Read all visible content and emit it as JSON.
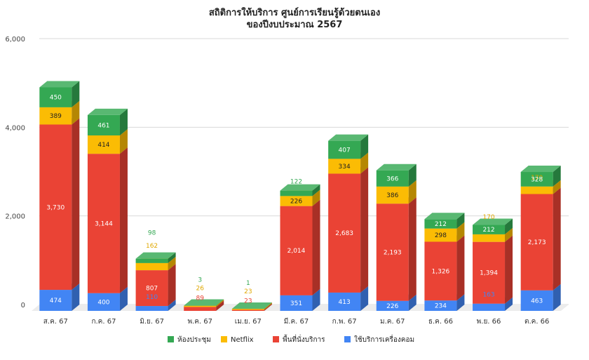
{
  "chart_data": {
    "type": "bar",
    "stacked": true,
    "style": "3d",
    "title": "สถิติการให้บริการ ศูนย์การเรียนรู้ด้วยตนเอง",
    "subtitle": "ของปีงบประมาณ 2567",
    "xlabel": "",
    "ylabel": "",
    "ylim": [
      0,
      6000
    ],
    "yticks": [
      "0",
      "2,000",
      "4,000",
      "6,000"
    ],
    "grid": true,
    "legend_position": "bottom",
    "categories": [
      "ส.ค. 67",
      "ก.ค. 67",
      "มิ.ย. 67",
      "พ.ค. 67",
      "เม.ย. 67",
      "มี.ค. 67",
      "ก.พ. 67",
      "ม.ค. 67",
      "ธ.ค. 66",
      "พ.ย. 66",
      "ต.ค. 66"
    ],
    "series": [
      {
        "name": "ใช้บริการเครื่องคอม",
        "color": "#4285F4",
        "values": [
          474,
          400,
          110,
          0,
          0,
          351,
          413,
          226,
          234,
          163,
          463
        ],
        "labels": [
          "474",
          "400",
          "110",
          "",
          "",
          "351",
          "413",
          "226",
          "234",
          "163",
          "463"
        ]
      },
      {
        "name": "พื้นที่นั่งบริการ",
        "color": "#EA4335",
        "values": [
          3730,
          3144,
          807,
          89,
          23,
          2014,
          2683,
          2193,
          1326,
          1394,
          2173
        ],
        "labels": [
          "3,730",
          "3,144",
          "807",
          "89",
          "23",
          "2,014",
          "2,683",
          "2,193",
          "1,326",
          "1,394",
          "2,173"
        ]
      },
      {
        "name": "Netflix",
        "color": "#FBBC04",
        "values": [
          389,
          414,
          162,
          26,
          23,
          226,
          334,
          386,
          298,
          170,
          170
        ],
        "labels": [
          "389",
          "414",
          "162",
          "26",
          "23",
          "226",
          "334",
          "386",
          "298",
          "170",
          "170"
        ]
      },
      {
        "name": "ห้องประชุม",
        "color": "#34A853",
        "values": [
          450,
          461,
          98,
          3,
          1,
          122,
          407,
          366,
          212,
          212,
          328
        ],
        "labels": [
          "450",
          "461",
          "98",
          "3",
          "1",
          "122",
          "407",
          "366",
          "212",
          "212",
          "328"
        ]
      }
    ],
    "legend_order": [
      3,
      2,
      1,
      0
    ]
  }
}
